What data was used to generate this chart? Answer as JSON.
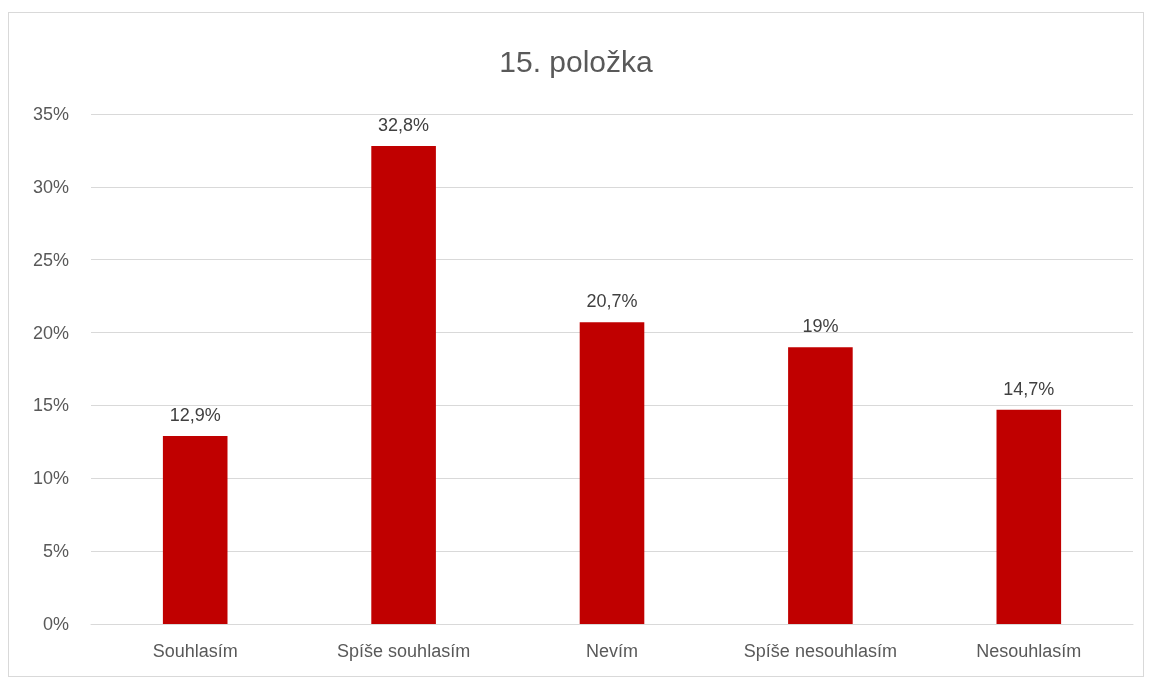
{
  "chart_data": {
    "type": "bar",
    "title": "15. položka",
    "categories": [
      "Souhlasím",
      "Spíše souhlasím",
      "Nevím",
      "Spíše nesouhlasím",
      "Nesouhlasím"
    ],
    "values": [
      12.9,
      32.8,
      20.7,
      19,
      14.7
    ],
    "value_labels": [
      "12,9%",
      "32,8%",
      "20,7%",
      "19%",
      "14,7%"
    ],
    "color": "#c00000",
    "ylim": [
      0,
      35
    ],
    "yticks": [
      {
        "value": 0,
        "label": "0%"
      },
      {
        "value": 5,
        "label": "5%"
      },
      {
        "value": 10,
        "label": "10%"
      },
      {
        "value": 15,
        "label": "15%"
      },
      {
        "value": 20,
        "label": "20%"
      },
      {
        "value": 25,
        "label": "25%"
      },
      {
        "value": 30,
        "label": "30%"
      },
      {
        "value": 35,
        "label": "35%"
      }
    ],
    "grid": "y"
  }
}
